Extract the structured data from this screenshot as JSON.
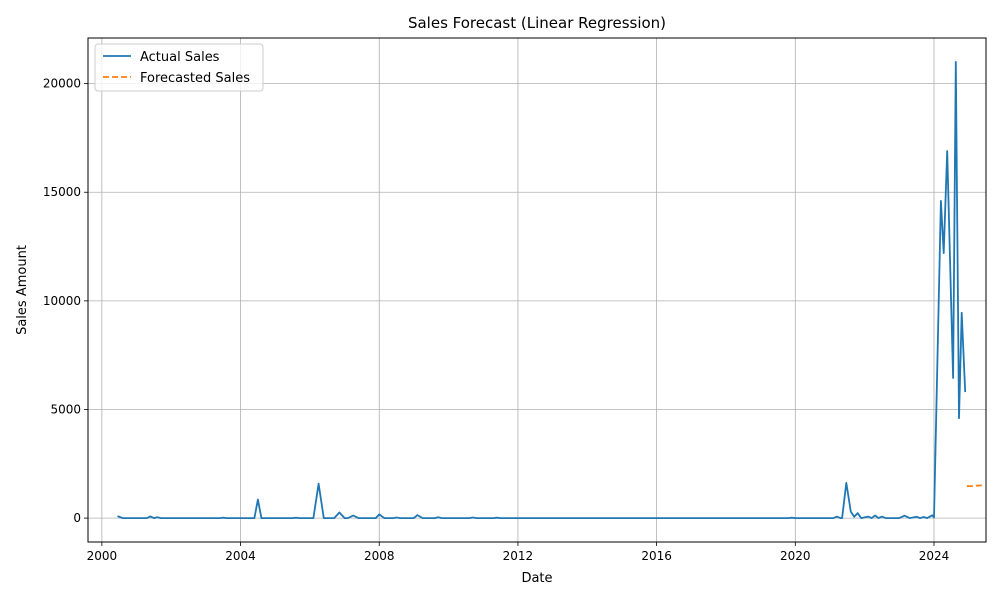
{
  "chart_data": {
    "type": "line",
    "title": "Sales Forecast (Linear Regression)",
    "xlabel": "Date",
    "ylabel": "Sales Amount",
    "xlim": [
      1999.6,
      2025.5
    ],
    "ylim": [
      -1100,
      22100
    ],
    "x_ticks": [
      2000,
      2004,
      2008,
      2012,
      2016,
      2020,
      2024
    ],
    "y_ticks": [
      0,
      5000,
      10000,
      15000,
      20000
    ],
    "grid": true,
    "legend_position": "top-left",
    "series": [
      {
        "name": "Actual Sales",
        "color": "#1f77b4",
        "style": "solid",
        "points": [
          [
            2000.45,
            90
          ],
          [
            2000.6,
            0
          ],
          [
            2001.0,
            0
          ],
          [
            2001.3,
            0
          ],
          [
            2001.4,
            80
          ],
          [
            2001.5,
            0
          ],
          [
            2001.6,
            40
          ],
          [
            2001.7,
            0
          ],
          [
            2002.5,
            0
          ],
          [
            2003.4,
            0
          ],
          [
            2003.5,
            20
          ],
          [
            2003.6,
            0
          ],
          [
            2004.4,
            0
          ],
          [
            2004.5,
            850
          ],
          [
            2004.6,
            0
          ],
          [
            2005.5,
            0
          ],
          [
            2005.6,
            20
          ],
          [
            2005.7,
            0
          ],
          [
            2006.1,
            0
          ],
          [
            2006.25,
            1580
          ],
          [
            2006.4,
            0
          ],
          [
            2006.7,
            0
          ],
          [
            2006.85,
            260
          ],
          [
            2007.0,
            0
          ],
          [
            2007.1,
            0
          ],
          [
            2007.25,
            120
          ],
          [
            2007.4,
            0
          ],
          [
            2007.9,
            0
          ],
          [
            2008.0,
            170
          ],
          [
            2008.15,
            0
          ],
          [
            2008.4,
            0
          ],
          [
            2008.5,
            30
          ],
          [
            2008.6,
            0
          ],
          [
            2009.0,
            0
          ],
          [
            2009.1,
            140
          ],
          [
            2009.25,
            0
          ],
          [
            2009.6,
            0
          ],
          [
            2009.7,
            40
          ],
          [
            2009.8,
            0
          ],
          [
            2010.6,
            0
          ],
          [
            2010.7,
            30
          ],
          [
            2010.8,
            0
          ],
          [
            2011.3,
            0
          ],
          [
            2011.4,
            20
          ],
          [
            2011.5,
            0
          ],
          [
            2013.0,
            0
          ],
          [
            2016.0,
            0
          ],
          [
            2019.8,
            0
          ],
          [
            2019.9,
            20
          ],
          [
            2020.0,
            0
          ],
          [
            2021.1,
            0
          ],
          [
            2021.2,
            70
          ],
          [
            2021.3,
            0
          ],
          [
            2021.35,
            0
          ],
          [
            2021.47,
            1620
          ],
          [
            2021.6,
            300
          ],
          [
            2021.7,
            60
          ],
          [
            2021.8,
            230
          ],
          [
            2021.9,
            0
          ],
          [
            2022.1,
            70
          ],
          [
            2022.2,
            0
          ],
          [
            2022.3,
            120
          ],
          [
            2022.4,
            0
          ],
          [
            2022.5,
            70
          ],
          [
            2022.6,
            0
          ],
          [
            2023.0,
            0
          ],
          [
            2023.15,
            110
          ],
          [
            2023.3,
            0
          ],
          [
            2023.5,
            60
          ],
          [
            2023.6,
            0
          ],
          [
            2023.7,
            50
          ],
          [
            2023.8,
            0
          ],
          [
            2023.95,
            130
          ],
          [
            2024.0,
            30
          ],
          [
            2024.2,
            14600
          ],
          [
            2024.28,
            12200
          ],
          [
            2024.38,
            16900
          ],
          [
            2024.55,
            6450
          ],
          [
            2024.63,
            21000
          ],
          [
            2024.72,
            4600
          ],
          [
            2024.8,
            9450
          ],
          [
            2024.9,
            5800
          ]
        ]
      },
      {
        "name": "Forecasted Sales",
        "color": "#ff7f0e",
        "style": "dashed",
        "points": [
          [
            2024.95,
            1470
          ],
          [
            2025.0,
            1475
          ],
          [
            2025.1,
            1480
          ],
          [
            2025.2,
            1490
          ],
          [
            2025.3,
            1500
          ],
          [
            2025.4,
            1510
          ]
        ]
      }
    ]
  }
}
